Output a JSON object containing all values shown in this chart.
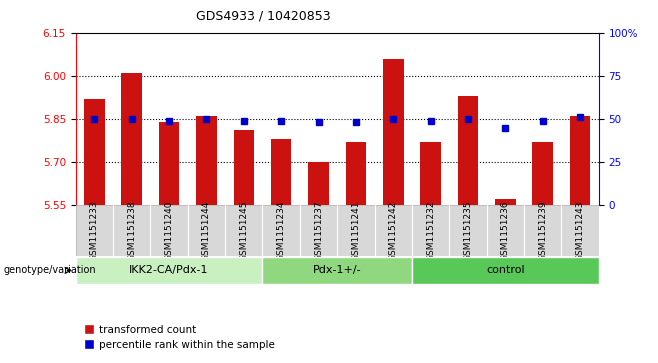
{
  "title": "GDS4933 / 10420853",
  "samples": [
    "GSM1151233",
    "GSM1151238",
    "GSM1151240",
    "GSM1151244",
    "GSM1151245",
    "GSM1151234",
    "GSM1151237",
    "GSM1151241",
    "GSM1151242",
    "GSM1151232",
    "GSM1151235",
    "GSM1151236",
    "GSM1151239",
    "GSM1151243"
  ],
  "red_values": [
    5.92,
    6.01,
    5.84,
    5.86,
    5.81,
    5.78,
    5.7,
    5.77,
    6.06,
    5.77,
    5.93,
    5.57,
    5.77,
    5.86
  ],
  "blue_values": [
    50,
    50,
    49,
    50,
    49,
    49,
    48,
    48,
    50,
    49,
    50,
    45,
    49,
    51
  ],
  "groups": [
    {
      "label": "IKK2-CA/Pdx-1",
      "start": 0,
      "end": 5,
      "color": "#c8f0c0"
    },
    {
      "label": "Pdx-1+/-",
      "start": 5,
      "end": 9,
      "color": "#90d880"
    },
    {
      "label": "control",
      "start": 9,
      "end": 14,
      "color": "#58c858"
    }
  ],
  "ylim_left": [
    5.55,
    6.15
  ],
  "ylim_right": [
    0,
    100
  ],
  "yticks_left": [
    5.55,
    5.7,
    5.85,
    6.0,
    6.15
  ],
  "yticks_right": [
    0,
    25,
    50,
    75,
    100
  ],
  "ytick_labels_right": [
    "0",
    "25",
    "50",
    "75",
    "100%"
  ],
  "hlines": [
    5.7,
    5.85,
    6.0
  ],
  "bar_color": "#cc1111",
  "dot_color": "#0000cc",
  "bar_bottom": 5.55,
  "legend_label_red": "transformed count",
  "legend_label_blue": "percentile rank within the sample",
  "genotype_label": "genotype/variation",
  "bar_width": 0.55
}
